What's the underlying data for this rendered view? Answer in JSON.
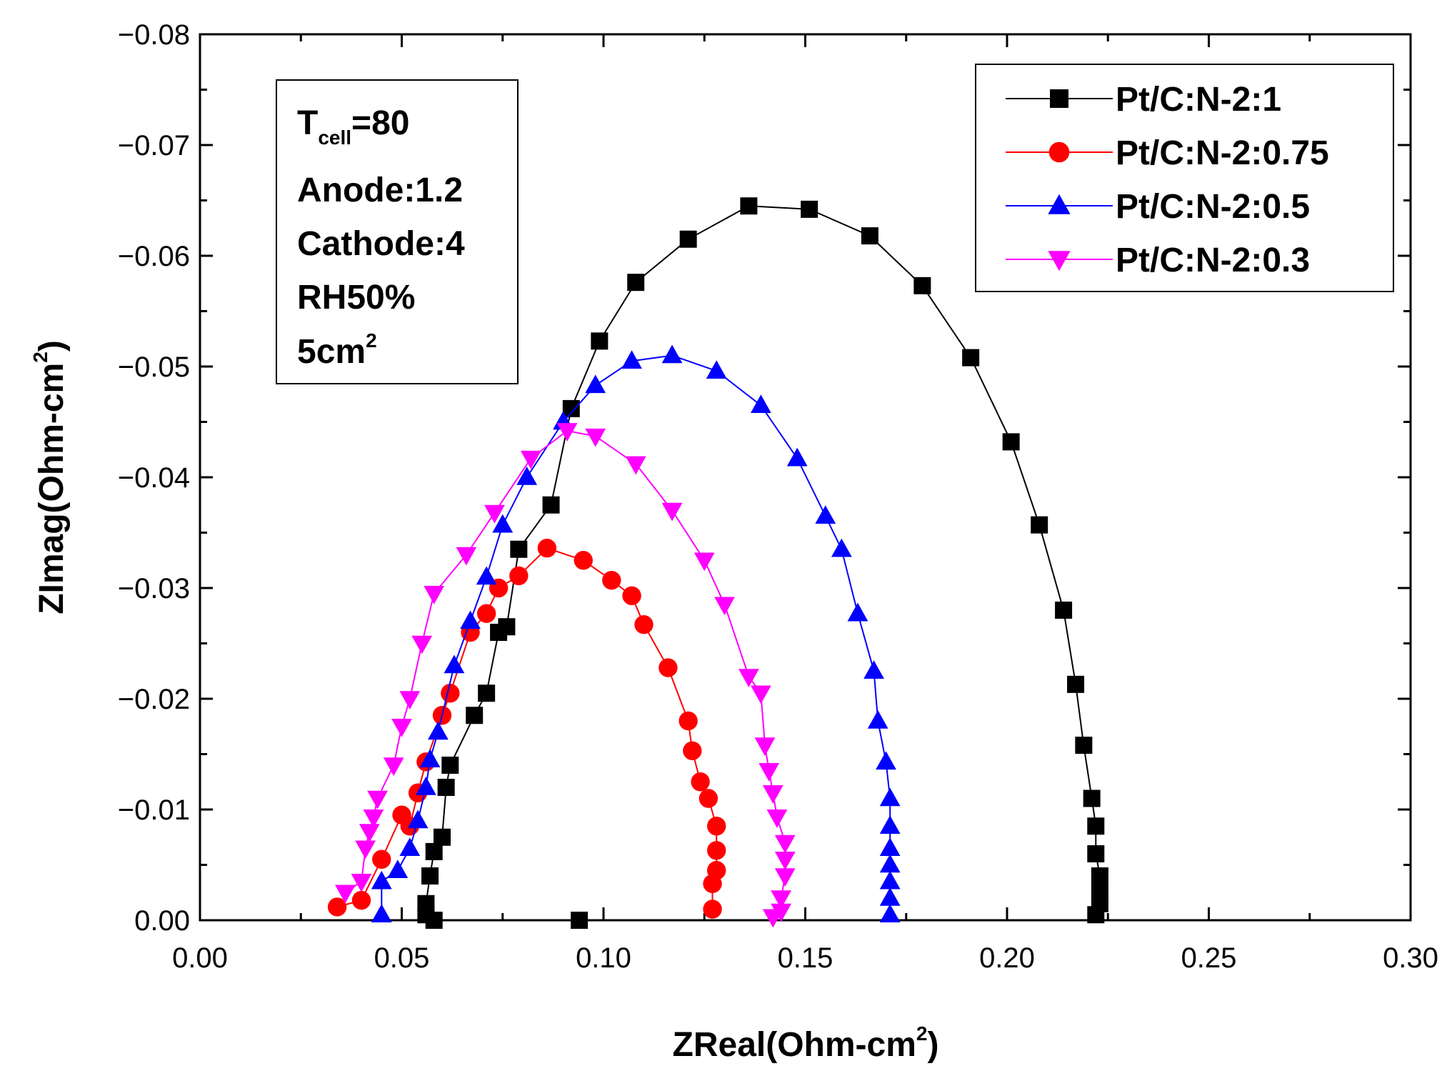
{
  "chart_data": {
    "type": "scatter",
    "xlabel": "ZReal(Ohm-cm",
    "xlabel_sup": "2",
    "xlabel_close": ")",
    "ylabel": "ZImag(Ohm-cm",
    "ylabel_sup": "2",
    "ylabel_close": ")",
    "xlim": [
      0,
      0.3
    ],
    "ylim": [
      0,
      -0.08
    ],
    "x_ticks": [
      0.0,
      0.05,
      0.1,
      0.15,
      0.2,
      0.25,
      0.3
    ],
    "x_tick_labels": [
      "0.00",
      "0.05",
      "0.10",
      "0.15",
      "0.20",
      "0.25",
      "0.30"
    ],
    "y_ticks": [
      0.0,
      -0.01,
      -0.02,
      -0.03,
      -0.04,
      -0.05,
      -0.06,
      -0.07,
      -0.08
    ],
    "y_tick_labels": [
      "0.00",
      "−0.01",
      "−0.02",
      "−0.03",
      "−0.04",
      "−0.05",
      "−0.06",
      "−0.07",
      "−0.08"
    ],
    "grid": false,
    "legend_position": "top-right",
    "info_box": {
      "t_main": "T",
      "t_sub": "cell",
      "t_rest": "=80",
      "anode": "Anode:1.2",
      "cathode": "Cathode:4",
      "rh": "RH50%",
      "area_main": "5cm",
      "area_sup": "2"
    },
    "series": [
      {
        "name": "Pt/C:N-2:1",
        "color": "#000000",
        "marker": "square",
        "points": [
          [
            0.094,
            0.0
          ],
          [
            0.058,
            0.0
          ],
          [
            0.056,
            -0.0005
          ],
          [
            0.056,
            -0.0015
          ],
          [
            0.057,
            -0.004
          ],
          [
            0.058,
            -0.0062
          ],
          [
            0.06,
            -0.0075
          ],
          [
            0.061,
            -0.012
          ],
          [
            0.062,
            -0.014
          ],
          [
            0.068,
            -0.0185
          ],
          [
            0.071,
            -0.0205
          ],
          [
            0.074,
            -0.026
          ],
          [
            0.076,
            -0.0265
          ],
          [
            0.079,
            -0.0335
          ],
          [
            0.087,
            -0.0375
          ],
          [
            0.092,
            -0.0462
          ],
          [
            0.099,
            -0.0523
          ],
          [
            0.108,
            -0.0576
          ],
          [
            0.121,
            -0.0615
          ],
          [
            0.136,
            -0.0645
          ],
          [
            0.151,
            -0.0642
          ],
          [
            0.166,
            -0.0618
          ],
          [
            0.179,
            -0.0573
          ],
          [
            0.191,
            -0.0508
          ],
          [
            0.201,
            -0.0432
          ],
          [
            0.208,
            -0.0357
          ],
          [
            0.214,
            -0.028
          ],
          [
            0.217,
            -0.0213
          ],
          [
            0.219,
            -0.0158
          ],
          [
            0.221,
            -0.011
          ],
          [
            0.222,
            -0.0085
          ],
          [
            0.222,
            -0.006
          ],
          [
            0.223,
            -0.004
          ],
          [
            0.223,
            -0.0025
          ],
          [
            0.223,
            -0.0015
          ],
          [
            0.222,
            -0.0005
          ]
        ]
      },
      {
        "name": "Pt/C:N-2:0.75",
        "color": "#ff0000",
        "marker": "circle",
        "points": [
          [
            0.034,
            -0.0012
          ],
          [
            0.04,
            -0.0018
          ],
          [
            0.045,
            -0.0055
          ],
          [
            0.05,
            -0.0095
          ],
          [
            0.052,
            -0.0085
          ],
          [
            0.054,
            -0.0115
          ],
          [
            0.056,
            -0.0143
          ],
          [
            0.06,
            -0.0185
          ],
          [
            0.062,
            -0.0205
          ],
          [
            0.067,
            -0.026
          ],
          [
            0.071,
            -0.0277
          ],
          [
            0.074,
            -0.03
          ],
          [
            0.079,
            -0.0311
          ],
          [
            0.086,
            -0.0336
          ],
          [
            0.095,
            -0.0325
          ],
          [
            0.102,
            -0.0307
          ],
          [
            0.107,
            -0.0293
          ],
          [
            0.11,
            -0.0267
          ],
          [
            0.116,
            -0.0228
          ],
          [
            0.121,
            -0.018
          ],
          [
            0.122,
            -0.0153
          ],
          [
            0.124,
            -0.0125
          ],
          [
            0.126,
            -0.011
          ],
          [
            0.128,
            -0.0085
          ],
          [
            0.128,
            -0.0063
          ],
          [
            0.128,
            -0.0045
          ],
          [
            0.127,
            -0.0033
          ],
          [
            0.127,
            -0.001
          ]
        ]
      },
      {
        "name": "Pt/C:N-2:0.5",
        "color": "#0000ff",
        "marker": "triangle-up",
        "points": [
          [
            0.045,
            -0.0005
          ],
          [
            0.045,
            -0.0035
          ],
          [
            0.049,
            -0.0045
          ],
          [
            0.052,
            -0.0065
          ],
          [
            0.054,
            -0.009
          ],
          [
            0.056,
            -0.012
          ],
          [
            0.057,
            -0.0145
          ],
          [
            0.059,
            -0.017
          ],
          [
            0.063,
            -0.023
          ],
          [
            0.067,
            -0.027
          ],
          [
            0.071,
            -0.031
          ],
          [
            0.075,
            -0.0357
          ],
          [
            0.081,
            -0.04
          ],
          [
            0.09,
            -0.045
          ],
          [
            0.098,
            -0.0483
          ],
          [
            0.107,
            -0.0505
          ],
          [
            0.117,
            -0.051
          ],
          [
            0.128,
            -0.0496
          ],
          [
            0.139,
            -0.0465
          ],
          [
            0.148,
            -0.0417
          ],
          [
            0.155,
            -0.0365
          ],
          [
            0.159,
            -0.0335
          ],
          [
            0.163,
            -0.0277
          ],
          [
            0.167,
            -0.0225
          ],
          [
            0.168,
            -0.018
          ],
          [
            0.17,
            -0.0143
          ],
          [
            0.171,
            -0.011
          ],
          [
            0.171,
            -0.0085
          ],
          [
            0.171,
            -0.0065
          ],
          [
            0.171,
            -0.005
          ],
          [
            0.171,
            -0.0035
          ],
          [
            0.171,
            -0.002
          ],
          [
            0.171,
            -0.0005
          ]
        ]
      },
      {
        "name": "Pt/C:N-2:0.3",
        "color": "#ff00ff",
        "marker": "triangle-down",
        "points": [
          [
            0.036,
            -0.0025
          ],
          [
            0.04,
            -0.0035
          ],
          [
            0.041,
            -0.0065
          ],
          [
            0.042,
            -0.008
          ],
          [
            0.043,
            -0.0093
          ],
          [
            0.044,
            -0.011
          ],
          [
            0.048,
            -0.014
          ],
          [
            0.05,
            -0.0175
          ],
          [
            0.052,
            -0.02
          ],
          [
            0.055,
            -0.025
          ],
          [
            0.058,
            -0.0295
          ],
          [
            0.066,
            -0.033
          ],
          [
            0.073,
            -0.0368
          ],
          [
            0.082,
            -0.0417
          ],
          [
            0.091,
            -0.0442
          ],
          [
            0.098,
            -0.0437
          ],
          [
            0.108,
            -0.0412
          ],
          [
            0.117,
            -0.037
          ],
          [
            0.125,
            -0.0325
          ],
          [
            0.13,
            -0.0285
          ],
          [
            0.136,
            -0.022
          ],
          [
            0.139,
            -0.0205
          ],
          [
            0.14,
            -0.0158
          ],
          [
            0.141,
            -0.0135
          ],
          [
            0.142,
            -0.0115
          ],
          [
            0.143,
            -0.0093
          ],
          [
            0.145,
            -0.007
          ],
          [
            0.145,
            -0.0055
          ],
          [
            0.145,
            -0.004
          ],
          [
            0.144,
            -0.002
          ],
          [
            0.144,
            -0.0008
          ],
          [
            0.142,
            -0.0003
          ]
        ]
      }
    ]
  }
}
